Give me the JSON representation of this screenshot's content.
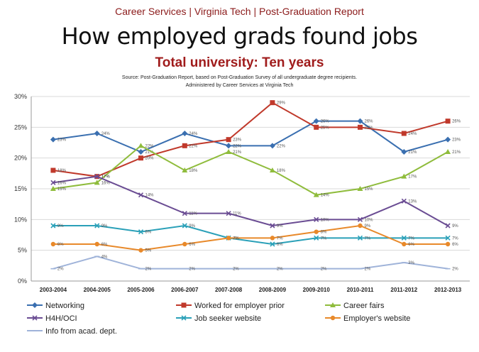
{
  "header": "Career Services | Virginia Tech | Post-Graduation Report",
  "chart_data": {
    "type": "line",
    "title": "How employed grads found jobs",
    "subtitle": "Total university: Ten years",
    "source_line1": "Source: Post-Graduation Report, based on Post-Graduation Survey of all undergraduate degree recipients.",
    "source_line2": "Administered by Career Services at Virginia Tech",
    "categories": [
      "2003-2004",
      "2004-2005",
      "2005-2006",
      "2006-2007",
      "2007-2008",
      "2008-2009",
      "2009-2010",
      "2010-2011",
      "2011-2012",
      "2012-2013"
    ],
    "ylim": [
      0,
      30
    ],
    "yticks": [
      "0%",
      "5%",
      "10%",
      "15%",
      "20%",
      "25%",
      "30%"
    ],
    "ytick_values": [
      0,
      5,
      10,
      15,
      20,
      25,
      30
    ],
    "grid": true,
    "legend_position": "bottom",
    "series": [
      {
        "name": "Networking",
        "color": "#3a6fb0",
        "marker": "diamond",
        "values": [
          23,
          24,
          21,
          24,
          22,
          22,
          26,
          26,
          21,
          23
        ]
      },
      {
        "name": "Worked for employer prior",
        "color": "#c0392b",
        "marker": "square",
        "values": [
          18,
          17,
          20,
          22,
          23,
          29,
          25,
          25,
          24,
          26
        ]
      },
      {
        "name": "Career fairs",
        "color": "#8fbc3c",
        "marker": "triangle",
        "values": [
          15,
          16,
          22,
          18,
          21,
          18,
          14,
          15,
          17,
          21
        ]
      },
      {
        "name": "H4H/OCI",
        "color": "#6a4c93",
        "marker": "x",
        "values": [
          16,
          17,
          14,
          11,
          11,
          9,
          10,
          10,
          13,
          9
        ]
      },
      {
        "name": "Job seeker website",
        "color": "#2aa0b8",
        "marker": "x",
        "values": [
          9,
          9,
          8,
          9,
          7,
          6,
          7,
          7,
          7,
          7
        ]
      },
      {
        "name": "Employer's website",
        "color": "#e8892a",
        "marker": "circle",
        "values": [
          6,
          6,
          5,
          6,
          7,
          7,
          8,
          9,
          6,
          6
        ]
      },
      {
        "name": "Info from acad. dept.",
        "color": "#9fb3d9",
        "marker": "plus",
        "values": [
          2,
          4,
          2,
          2,
          2,
          2,
          2,
          2,
          3,
          2
        ]
      }
    ]
  }
}
